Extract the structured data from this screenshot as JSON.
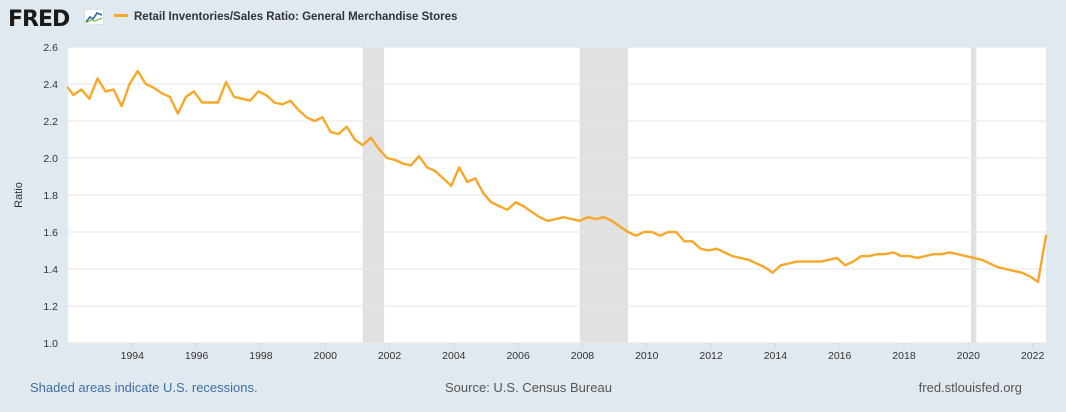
{
  "header": {
    "logo_text": "FRED",
    "legend_label": "Retail Inventories/Sales Ratio: General Merchandise Stores"
  },
  "footer": {
    "recessions_note": "Shaded areas indicate U.S. recessions.",
    "source": "Source: U.S. Census Bureau",
    "site": "fred.stlouisfed.org"
  },
  "colors": {
    "series": "#f7a829",
    "recession": "#e1e1e1",
    "background": "#e1e9f0"
  },
  "chart_data": {
    "type": "line",
    "ylabel": "Ratio",
    "xlabel": "",
    "ylim": [
      1.0,
      2.6
    ],
    "y_ticks": [
      "1.0",
      "1.2",
      "1.4",
      "1.6",
      "1.8",
      "2.0",
      "2.2",
      "2.4",
      "2.6"
    ],
    "x_ticks": [
      "1994",
      "1996",
      "1998",
      "2000",
      "2002",
      "2004",
      "2006",
      "2008",
      "2010",
      "2012",
      "2014",
      "2016",
      "2018",
      "2020",
      "2022"
    ],
    "x_range": [
      "1992-01",
      "2022-06"
    ],
    "recessions": [
      [
        "2001-03",
        "2001-11"
      ],
      [
        "2007-12",
        "2009-06"
      ],
      [
        "2020-02",
        "2020-04"
      ]
    ],
    "grid": true,
    "legend_position": "top-left",
    "series": [
      {
        "name": "Retail Inventories/Sales Ratio: General Merchandise Stores",
        "points": [
          [
            "1992-01",
            2.38
          ],
          [
            "1992-03",
            2.34
          ],
          [
            "1992-06",
            2.37
          ],
          [
            "1992-09",
            2.32
          ],
          [
            "1992-12",
            2.43
          ],
          [
            "1993-03",
            2.36
          ],
          [
            "1993-06",
            2.37
          ],
          [
            "1993-09",
            2.28
          ],
          [
            "1993-12",
            2.4
          ],
          [
            "1994-03",
            2.47
          ],
          [
            "1994-06",
            2.4
          ],
          [
            "1994-09",
            2.38
          ],
          [
            "1994-12",
            2.35
          ],
          [
            "1995-03",
            2.33
          ],
          [
            "1995-06",
            2.24
          ],
          [
            "1995-09",
            2.33
          ],
          [
            "1995-12",
            2.36
          ],
          [
            "1996-03",
            2.3
          ],
          [
            "1996-06",
            2.3
          ],
          [
            "1996-09",
            2.3
          ],
          [
            "1996-12",
            2.41
          ],
          [
            "1997-03",
            2.33
          ],
          [
            "1997-06",
            2.32
          ],
          [
            "1997-09",
            2.31
          ],
          [
            "1997-12",
            2.36
          ],
          [
            "1998-03",
            2.34
          ],
          [
            "1998-06",
            2.3
          ],
          [
            "1998-09",
            2.29
          ],
          [
            "1998-12",
            2.31
          ],
          [
            "1999-03",
            2.26
          ],
          [
            "1999-06",
            2.22
          ],
          [
            "1999-09",
            2.2
          ],
          [
            "1999-12",
            2.22
          ],
          [
            "2000-03",
            2.14
          ],
          [
            "2000-06",
            2.13
          ],
          [
            "2000-09",
            2.17
          ],
          [
            "2000-12",
            2.1
          ],
          [
            "2001-03",
            2.07
          ],
          [
            "2001-06",
            2.11
          ],
          [
            "2001-09",
            2.05
          ],
          [
            "2001-12",
            2.0
          ],
          [
            "2002-03",
            1.99
          ],
          [
            "2002-06",
            1.97
          ],
          [
            "2002-09",
            1.96
          ],
          [
            "2002-12",
            2.01
          ],
          [
            "2003-03",
            1.95
          ],
          [
            "2003-06",
            1.93
          ],
          [
            "2003-09",
            1.89
          ],
          [
            "2003-12",
            1.85
          ],
          [
            "2004-03",
            1.95
          ],
          [
            "2004-06",
            1.87
          ],
          [
            "2004-09",
            1.89
          ],
          [
            "2004-12",
            1.81
          ],
          [
            "2005-03",
            1.76
          ],
          [
            "2005-06",
            1.74
          ],
          [
            "2005-09",
            1.72
          ],
          [
            "2005-12",
            1.76
          ],
          [
            "2006-03",
            1.74
          ],
          [
            "2006-06",
            1.71
          ],
          [
            "2006-09",
            1.68
          ],
          [
            "2006-12",
            1.66
          ],
          [
            "2007-03",
            1.67
          ],
          [
            "2007-06",
            1.68
          ],
          [
            "2007-09",
            1.67
          ],
          [
            "2007-12",
            1.66
          ],
          [
            "2008-03",
            1.68
          ],
          [
            "2008-06",
            1.67
          ],
          [
            "2008-09",
            1.68
          ],
          [
            "2008-12",
            1.66
          ],
          [
            "2009-03",
            1.63
          ],
          [
            "2009-06",
            1.6
          ],
          [
            "2009-09",
            1.58
          ],
          [
            "2009-12",
            1.6
          ],
          [
            "2010-03",
            1.6
          ],
          [
            "2010-06",
            1.58
          ],
          [
            "2010-09",
            1.6
          ],
          [
            "2010-12",
            1.6
          ],
          [
            "2011-03",
            1.55
          ],
          [
            "2011-06",
            1.55
          ],
          [
            "2011-09",
            1.51
          ],
          [
            "2011-12",
            1.5
          ],
          [
            "2012-03",
            1.51
          ],
          [
            "2012-06",
            1.49
          ],
          [
            "2012-09",
            1.47
          ],
          [
            "2012-12",
            1.46
          ],
          [
            "2013-03",
            1.45
          ],
          [
            "2013-06",
            1.43
          ],
          [
            "2013-09",
            1.41
          ],
          [
            "2013-12",
            1.38
          ],
          [
            "2014-03",
            1.42
          ],
          [
            "2014-06",
            1.43
          ],
          [
            "2014-09",
            1.44
          ],
          [
            "2014-12",
            1.44
          ],
          [
            "2015-03",
            1.44
          ],
          [
            "2015-06",
            1.44
          ],
          [
            "2015-09",
            1.45
          ],
          [
            "2015-12",
            1.46
          ],
          [
            "2016-03",
            1.42
          ],
          [
            "2016-06",
            1.44
          ],
          [
            "2016-09",
            1.47
          ],
          [
            "2016-12",
            1.47
          ],
          [
            "2017-03",
            1.48
          ],
          [
            "2017-06",
            1.48
          ],
          [
            "2017-09",
            1.49
          ],
          [
            "2017-12",
            1.47
          ],
          [
            "2018-03",
            1.47
          ],
          [
            "2018-06",
            1.46
          ],
          [
            "2018-09",
            1.47
          ],
          [
            "2018-12",
            1.48
          ],
          [
            "2019-03",
            1.48
          ],
          [
            "2019-06",
            1.49
          ],
          [
            "2019-09",
            1.48
          ],
          [
            "2019-12",
            1.47
          ],
          [
            "2020-03",
            1.46
          ],
          [
            "2020-06",
            1.45
          ],
          [
            "2020-09",
            1.43
          ],
          [
            "2020-12",
            1.41
          ],
          [
            "2021-03",
            1.4
          ],
          [
            "2021-06",
            1.39
          ],
          [
            "2021-09",
            1.38
          ],
          [
            "2021-12",
            1.36
          ],
          [
            "2022-03",
            1.33
          ],
          [
            "2022-06",
            1.58
          ]
        ]
      }
    ]
  }
}
